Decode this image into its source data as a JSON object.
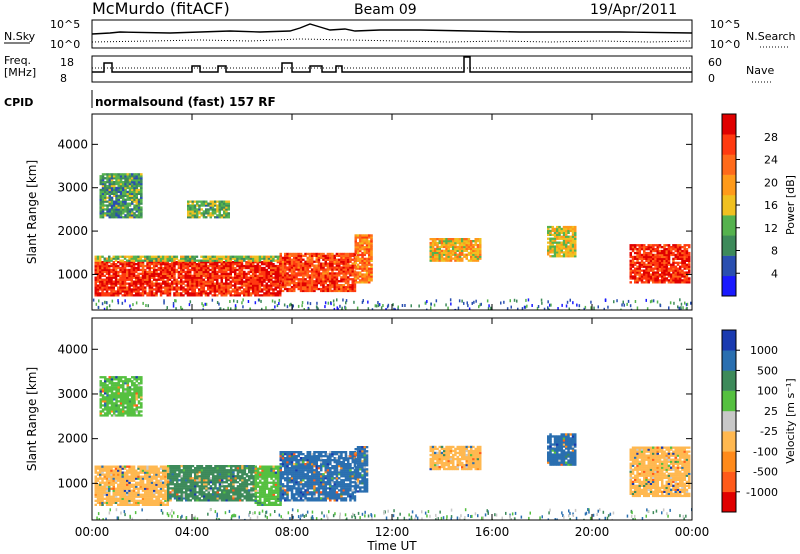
{
  "header": {
    "site": "McMurdo (fitACF)",
    "beam": "Beam 09",
    "date": "19/Apr/2011",
    "cpid_label": "CPID",
    "cpid_value": "normalsound (fast) 157 RF"
  },
  "noise_panel": {
    "left_label": "N.Sky",
    "right_label": "N.Search",
    "left_ticks": [
      "10^5",
      "10^0"
    ],
    "right_ticks": [
      "10^5",
      "10^0"
    ]
  },
  "freq_panel": {
    "left_label_line1": "Freq.",
    "left_label_line2": "[MHz]",
    "right_label": "Nave",
    "left_ticks": [
      "18",
      "8"
    ],
    "right_ticks": [
      "60",
      "0"
    ]
  },
  "colors": {
    "power": [
      "#1a1aff",
      "#2a4fb0",
      "#3d8a5a",
      "#55b24e",
      "#f0c020",
      "#ff9a1a",
      "#ff6a1a",
      "#ff3a10",
      "#e00000"
    ],
    "velocity": [
      "#e00000",
      "#ff5a1a",
      "#ff8a1a",
      "#ffb850",
      "#c8c8c8",
      "#55c040",
      "#3d8a5a",
      "#2a6fb0",
      "#1a3ab0"
    ]
  },
  "chart_data": [
    {
      "type": "heatmap",
      "title": "Power",
      "ylabel": "Slant Range [km]",
      "xlabel": "",
      "x_ticks": [
        "00:00",
        "04:00",
        "08:00",
        "12:00",
        "16:00",
        "20:00",
        "00:00"
      ],
      "y_ticks": [
        1000,
        2000,
        3000,
        4000
      ],
      "xlim": [
        0,
        24
      ],
      "ylim": [
        180,
        4700
      ],
      "colorbar": {
        "label": "Power [dB]",
        "ticks": [
          4,
          8,
          12,
          16,
          20,
          24,
          28
        ],
        "range": [
          0,
          32
        ]
      },
      "regions": [
        {
          "t0": 0.1,
          "t1": 7.5,
          "r0": 500,
          "r1": 1300,
          "value": 28
        },
        {
          "t0": 0.1,
          "t1": 7.5,
          "r0": 1300,
          "r1": 1400,
          "value": 14
        },
        {
          "t0": 7.5,
          "t1": 10.5,
          "r0": 600,
          "r1": 1500,
          "value": 26
        },
        {
          "t0": 10.5,
          "t1": 11.2,
          "r0": 800,
          "r1": 1900,
          "value": 22
        },
        {
          "t0": 13.5,
          "t1": 15.5,
          "r0": 1300,
          "r1": 1800,
          "value": 18
        },
        {
          "t0": 18.2,
          "t1": 19.3,
          "r0": 1400,
          "r1": 2100,
          "value": 16
        },
        {
          "t0": 21.5,
          "t1": 23.9,
          "r0": 800,
          "r1": 1700,
          "value": 28
        },
        {
          "t0": 0.3,
          "t1": 2.0,
          "r0": 2300,
          "r1": 3300,
          "value": 10
        },
        {
          "t0": 3.8,
          "t1": 5.5,
          "r0": 2300,
          "r1": 2700,
          "value": 12
        }
      ]
    },
    {
      "type": "heatmap",
      "title": "Velocity",
      "ylabel": "Slant Range [km]",
      "xlabel": "Time UT",
      "x_ticks": [
        "00:00",
        "04:00",
        "08:00",
        "12:00",
        "16:00",
        "20:00",
        "00:00"
      ],
      "y_ticks": [
        1000,
        2000,
        3000,
        4000
      ],
      "xlim": [
        0,
        24
      ],
      "ylim": [
        180,
        4700
      ],
      "colorbar": {
        "label": "Velocity [m s⁻¹]",
        "ticks": [
          "-1000",
          "-500",
          "-100",
          "-25",
          "25",
          "100",
          "500",
          "1000"
        ]
      },
      "regions": [
        {
          "t0": 0.1,
          "t1": 3.0,
          "r0": 500,
          "r1": 1400,
          "value": -100
        },
        {
          "t0": 3.0,
          "t1": 6.5,
          "r0": 600,
          "r1": 1400,
          "value": 100
        },
        {
          "t0": 6.5,
          "t1": 7.5,
          "r0": 500,
          "r1": 1400,
          "value": 25
        },
        {
          "t0": 7.5,
          "t1": 10.5,
          "r0": 600,
          "r1": 1700,
          "value": 500
        },
        {
          "t0": 10.5,
          "t1": 11.0,
          "r0": 800,
          "r1": 1800,
          "value": 500
        },
        {
          "t0": 13.5,
          "t1": 15.5,
          "r0": 1300,
          "r1": 1800,
          "value": -100
        },
        {
          "t0": 18.2,
          "t1": 19.3,
          "r0": 1400,
          "r1": 2100,
          "value": 500
        },
        {
          "t0": 21.5,
          "t1": 23.9,
          "r0": 700,
          "r1": 1800,
          "value": -100
        },
        {
          "t0": 0.3,
          "t1": 2.0,
          "r0": 2500,
          "r1": 3400,
          "value": 25
        }
      ]
    }
  ]
}
